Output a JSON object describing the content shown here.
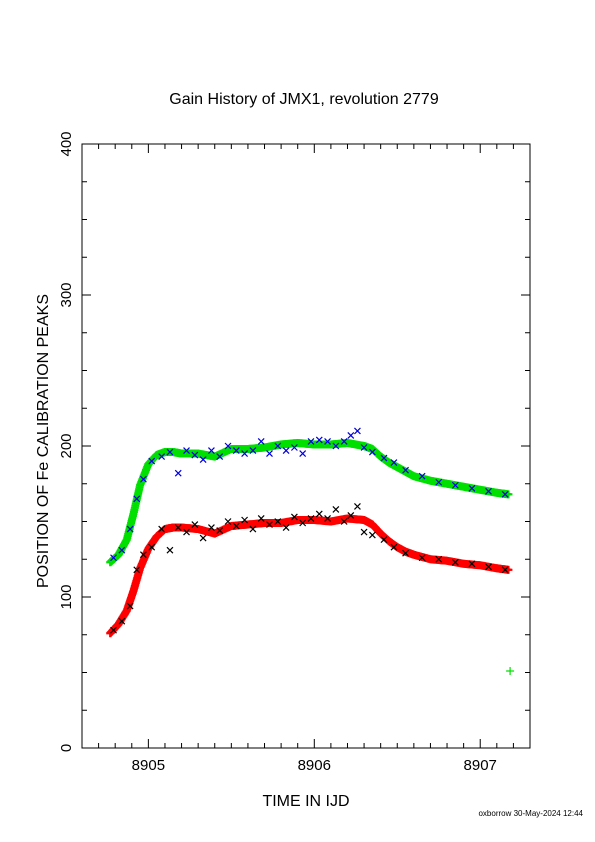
{
  "chart_data": {
    "type": "scatter",
    "title": "Gain History of JMX1, revolution 2779",
    "xlabel": "TIME IN IJD",
    "ylabel": "POSITION OF Fe CALIBRATION PEAKS",
    "xlim": [
      8904.6,
      8907.3
    ],
    "ylim": [
      0,
      400
    ],
    "x_ticks": [
      8905,
      8906,
      8907
    ],
    "y_ticks": [
      0,
      100,
      200,
      300,
      400
    ],
    "grid": false,
    "legend": "none",
    "series": [
      {
        "color": "#00e000",
        "marker": "+",
        "style": "fit-curve",
        "x": [
          8904.77,
          8904.82,
          8904.87,
          8904.91,
          8904.95,
          8905.0,
          8905.05,
          8905.1,
          8905.15,
          8905.2,
          8905.3,
          8905.4,
          8905.5,
          8905.6,
          8905.7,
          8905.8,
          8905.9,
          8906.0,
          8906.1,
          8906.2,
          8906.3,
          8906.35,
          8906.4,
          8906.45,
          8906.5,
          8906.55,
          8906.6,
          8906.7,
          8906.8,
          8906.9,
          8907.0,
          8907.1,
          8907.17
        ],
        "y": [
          123,
          128,
          138,
          155,
          174,
          188,
          194,
          196,
          196,
          195,
          195,
          193,
          198,
          198,
          199,
          201,
          202,
          201,
          201,
          202,
          200,
          198,
          193,
          189,
          186,
          183,
          180,
          177,
          175,
          173,
          171,
          169,
          168
        ]
      },
      {
        "color": "#ff0000",
        "marker": "+",
        "style": "fit-curve",
        "x": [
          8904.77,
          8904.82,
          8904.87,
          8904.91,
          8904.95,
          8905.0,
          8905.05,
          8905.1,
          8905.15,
          8905.2,
          8905.3,
          8905.4,
          8905.5,
          8905.6,
          8905.7,
          8905.8,
          8905.9,
          8906.0,
          8906.1,
          8906.2,
          8906.3,
          8906.35,
          8906.4,
          8906.45,
          8906.5,
          8906.55,
          8906.6,
          8906.7,
          8906.8,
          8906.9,
          8907.0,
          8907.1,
          8907.17
        ],
        "y": [
          76,
          82,
          91,
          104,
          119,
          132,
          140,
          145,
          146,
          146,
          145,
          142,
          147,
          148,
          149,
          149,
          151,
          151,
          150,
          152,
          151,
          148,
          142,
          137,
          133,
          130,
          128,
          125,
          124,
          122,
          121,
          119,
          118
        ]
      },
      {
        "color": "#0000dd",
        "marker": "x",
        "style": "points",
        "x": [
          8904.79,
          8904.84,
          8904.89,
          8904.93,
          8904.97,
          8905.02,
          8905.08,
          8905.13,
          8905.18,
          8905.23,
          8905.28,
          8905.33,
          8905.38,
          8905.43,
          8905.48,
          8905.53,
          8905.58,
          8905.63,
          8905.68,
          8905.73,
          8905.78,
          8905.83,
          8905.88,
          8905.93,
          8905.98,
          8906.03,
          8906.08,
          8906.13,
          8906.18,
          8906.22,
          8906.26,
          8906.3,
          8906.35,
          8906.42,
          8906.48,
          8906.55,
          8906.65,
          8906.75,
          8906.85,
          8906.95,
          8907.05,
          8907.15
        ],
        "y": [
          126,
          131,
          145,
          165,
          178,
          190,
          193,
          196,
          182,
          197,
          194,
          191,
          197,
          193,
          200,
          197,
          195,
          197,
          203,
          195,
          200,
          197,
          199,
          195,
          203,
          204,
          203,
          200,
          203,
          207,
          210,
          199,
          196,
          192,
          189,
          184,
          180,
          176,
          174,
          172,
          170,
          168
        ]
      },
      {
        "color": "#000000",
        "marker": "x",
        "style": "points",
        "x": [
          8904.79,
          8904.84,
          8904.89,
          8904.93,
          8904.97,
          8905.02,
          8905.08,
          8905.13,
          8905.18,
          8905.23,
          8905.28,
          8905.33,
          8905.38,
          8905.43,
          8905.48,
          8905.53,
          8905.58,
          8905.63,
          8905.68,
          8905.73,
          8905.78,
          8905.83,
          8905.88,
          8905.93,
          8905.98,
          8906.03,
          8906.08,
          8906.13,
          8906.18,
          8906.22,
          8906.26,
          8906.3,
          8906.35,
          8906.42,
          8906.48,
          8906.55,
          8906.65,
          8906.75,
          8906.85,
          8906.95,
          8907.05,
          8907.15
        ],
        "y": [
          78,
          84,
          94,
          118,
          128,
          133,
          145,
          131,
          146,
          143,
          148,
          139,
          146,
          144,
          150,
          147,
          151,
          145,
          152,
          148,
          150,
          146,
          153,
          149,
          152,
          155,
          152,
          158,
          150,
          154,
          160,
          143,
          141,
          138,
          133,
          129,
          126,
          125,
          123,
          122,
          120,
          118
        ]
      },
      {
        "color": "#00e000",
        "marker": "+",
        "style": "points",
        "x": [
          8907.18
        ],
        "y": [
          51
        ]
      }
    ]
  },
  "footer": "oxborrow 30-May-2024 12:44"
}
